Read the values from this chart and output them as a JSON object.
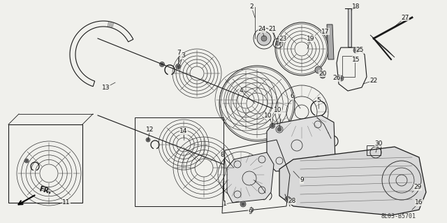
{
  "bg_color": "#f0f0ec",
  "line_color": "#1a1a1a",
  "diagram_code": "8L03-B5701",
  "figsize": [
    6.4,
    3.19
  ],
  "dpi": 100
}
